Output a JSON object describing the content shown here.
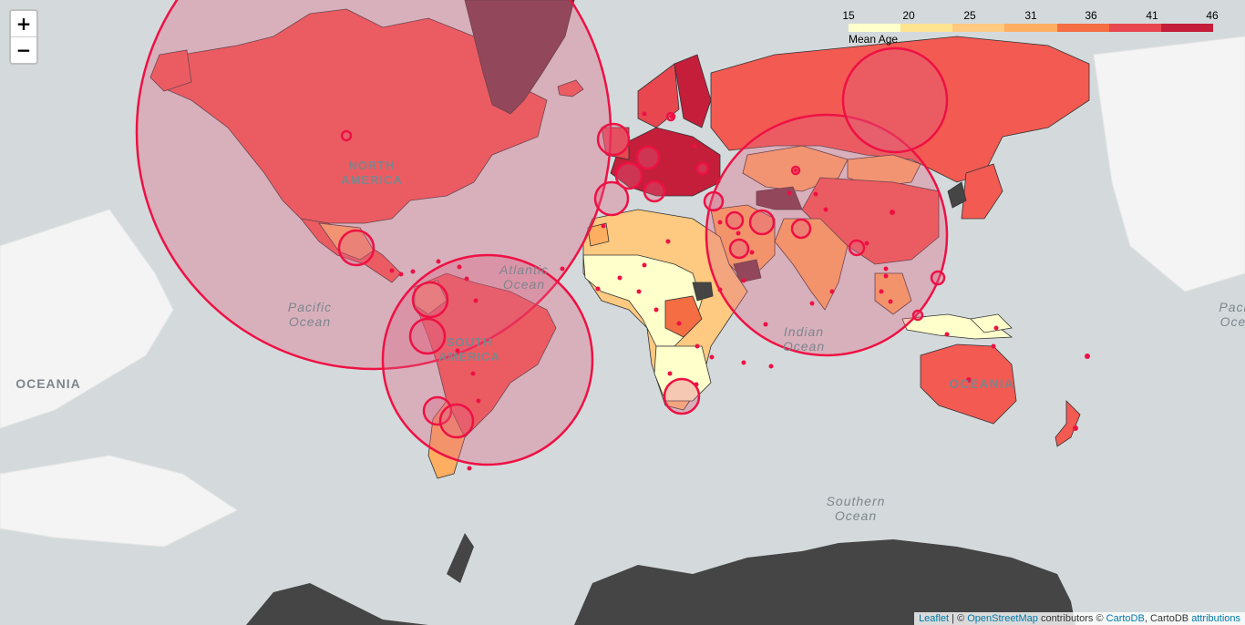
{
  "zoom": {
    "in_label": "+",
    "out_label": "−"
  },
  "legend": {
    "ticks": [
      "15",
      "20",
      "25",
      "31",
      "36",
      "41",
      "46"
    ],
    "caption": "Mean Age",
    "colors": [
      "#ffffcc",
      "#fee391",
      "#fec980",
      "#fdae61",
      "#f46d43",
      "#e8474f",
      "#c41e3a"
    ]
  },
  "labels": {
    "north_america": [
      "NORTH",
      "AMERICA"
    ],
    "south_america": [
      "SOUTH",
      "AMERICA"
    ],
    "atlantic": [
      "Atlantic",
      "Ocean"
    ],
    "pacific_left": [
      "Pacific",
      "Ocean"
    ],
    "pacific_right": [
      "Paci",
      "Oce"
    ],
    "indian": [
      "Indian",
      "Ocean"
    ],
    "southern": [
      "Southern",
      "Ocean"
    ],
    "oceania_left": "OCEANIA",
    "oceania": "OCEANIA"
  },
  "attribution": {
    "leaflet": "Leaflet",
    "sep1": " | © ",
    "osm": "OpenStreetMap",
    "mid": " contributors © ",
    "carto": "CartoDB",
    "mid2": ", CartoDB ",
    "attr": "attributions"
  },
  "colors": {
    "ocean": "#d4dadc",
    "land_base": "#f7f7f7",
    "dark": "#6b3a47",
    "circle_stroke": "#ee1144",
    "circle_fill": "#e06080",
    "antarctica": "#454545"
  }
}
